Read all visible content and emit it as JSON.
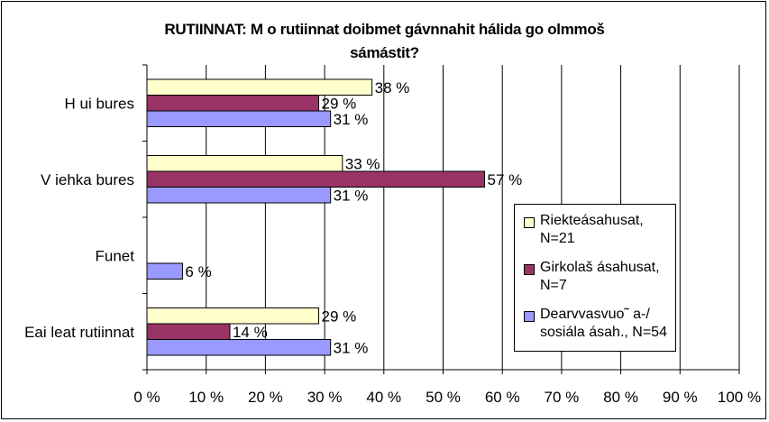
{
  "chart_data": {
    "type": "bar",
    "orientation": "horizontal",
    "title_line1": "RUTIINNAT: M o rutiinnat doibmet gávnnahit hálida go olmmoš",
    "title_line2": "sámástit?",
    "categories": [
      "H ui bures",
      "V iehka bures",
      "Funet",
      "Eai leat rutiinnat"
    ],
    "series": [
      {
        "name": "Riekteásahusat, N=21",
        "legend_lines": [
          "Riekteásahusat,",
          "N=21"
        ],
        "color": "#FFFFCC",
        "values": [
          38,
          33,
          null,
          29
        ],
        "labels": [
          "38 %",
          "33 %",
          "",
          "29 %"
        ]
      },
      {
        "name": "Girkolaš ásahusat, N=7",
        "legend_lines": [
          "Girkolaš ásahusat,",
          "N=7"
        ],
        "color": "#993366",
        "values": [
          29,
          57,
          null,
          14
        ],
        "labels": [
          "29 %",
          "57 %",
          "",
          "14 %"
        ]
      },
      {
        "name": "Dearvvasvuo˜ a-/ sosiála ásah., N=54",
        "legend_lines": [
          "Dearvvasvuo˜ a-/",
          "sosiála ásah., N=54"
        ],
        "color": "#9999FF",
        "values": [
          31,
          31,
          6,
          31
        ],
        "labels": [
          "31 %",
          "31 %",
          "6 %",
          "31 %"
        ]
      }
    ],
    "xlim": [
      0,
      100
    ],
    "xticks": [
      "0 %",
      "10 %",
      "20 %",
      "30 %",
      "40 %",
      "50 %",
      "60 %",
      "70 %",
      "80 %",
      "90 %",
      "100 %"
    ],
    "grid": true,
    "legend_position": "right"
  }
}
